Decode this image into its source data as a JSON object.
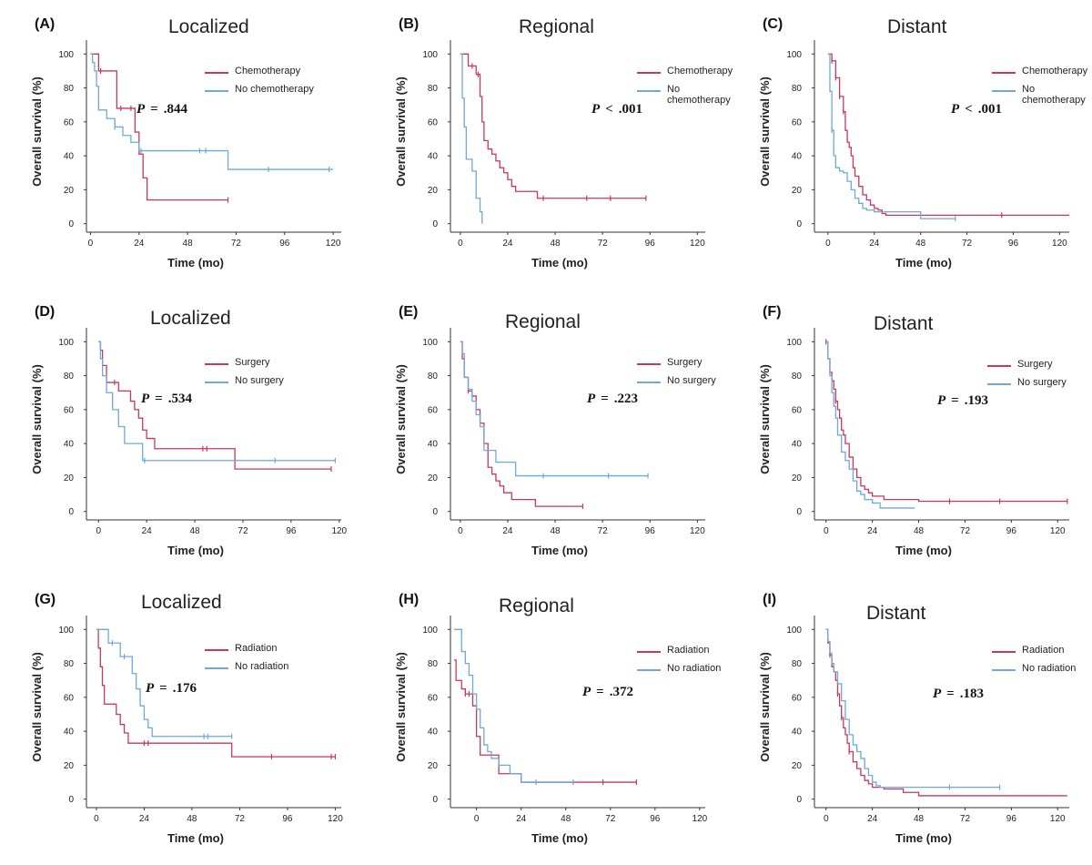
{
  "colors": {
    "treated": "#c8385a",
    "untreated": "#6ea8dc",
    "axis": "#333333"
  },
  "chart_data": [
    {
      "panel": "(A)",
      "title": "Localized",
      "type": "line",
      "xlabel": "Time (mo)",
      "ylabel": "Overall survival (%)",
      "xticks": [
        "0",
        "24",
        "48",
        "72",
        "96",
        "120"
      ],
      "yticks": [
        "0",
        "20",
        "40",
        "60",
        "80",
        "100"
      ],
      "xlim": [
        -2,
        124
      ],
      "ylim": [
        -5,
        105
      ],
      "legend": [
        "Chemotherapy",
        "No chemotherapy"
      ],
      "p_label": "P",
      "p_op": "=",
      "p_value": ".844",
      "series": [
        {
          "name": "Chemotherapy",
          "x": [
            0,
            2,
            4,
            10,
            13,
            20,
            22,
            24,
            26,
            28,
            68
          ],
          "y": [
            100,
            100,
            90,
            90,
            68,
            68,
            54,
            41,
            27,
            14,
            14
          ],
          "censor_x": [
            5,
            15,
            20,
            68
          ],
          "censor_y": [
            90,
            68,
            68,
            14
          ]
        },
        {
          "name": "No chemotherapy",
          "x": [
            0,
            1,
            2,
            3,
            4,
            8,
            12,
            16,
            20,
            24,
            48,
            55,
            68,
            120
          ],
          "y": [
            100,
            95,
            90,
            81,
            67,
            62,
            57,
            52,
            48,
            43,
            43,
            43,
            32,
            32
          ],
          "censor_x": [
            12,
            25,
            54,
            57,
            88,
            118
          ],
          "censor_y": [
            57,
            43,
            43,
            43,
            32,
            32
          ]
        }
      ]
    },
    {
      "panel": "(B)",
      "title": "Regional",
      "type": "line",
      "xlabel": "Time (mo)",
      "ylabel": "Overall survival (%)",
      "xticks": [
        "0",
        "24",
        "48",
        "72",
        "96",
        "120"
      ],
      "yticks": [
        "0",
        "20",
        "40",
        "60",
        "80",
        "100"
      ],
      "xlim": [
        -5,
        124
      ],
      "ylim": [
        -5,
        105
      ],
      "legend": [
        "Chemotherapy",
        "No chemotherapy"
      ],
      "p_label": "P",
      "p_op": "<",
      "p_value": ".001",
      "series": [
        {
          "name": "Chemotherapy",
          "x": [
            0,
            4,
            8,
            10,
            11,
            12,
            14,
            16,
            18,
            20,
            22,
            24,
            26,
            28,
            30,
            35,
            39,
            40,
            94
          ],
          "y": [
            100,
            93,
            88,
            75,
            60,
            49,
            44,
            41,
            37,
            33,
            30,
            26,
            22,
            19,
            19,
            19,
            15,
            15,
            15
          ],
          "censor_x": [
            6,
            9,
            42,
            64,
            76,
            94
          ],
          "censor_y": [
            93,
            88,
            15,
            15,
            15,
            15
          ]
        },
        {
          "name": "No chemotherapy",
          "x": [
            0,
            1,
            2,
            3,
            4,
            6,
            8,
            10,
            11
          ],
          "y": [
            100,
            74,
            57,
            38,
            38,
            31,
            15,
            7,
            0
          ],
          "censor_x": [],
          "censor_y": []
        }
      ]
    },
    {
      "panel": "(C)",
      "title": "Distant",
      "type": "line",
      "xlabel": "Time (mo)",
      "ylabel": "Overall survival (%)",
      "xticks": [
        "0",
        "24",
        "48",
        "72",
        "96",
        "120"
      ],
      "yticks": [
        "0",
        "20",
        "40",
        "60",
        "80",
        "100"
      ],
      "xlim": [
        -7,
        125
      ],
      "ylim": [
        -5,
        105
      ],
      "legend": [
        "Chemotherapy",
        "No chemotherapy"
      ],
      "p_label": "P",
      "p_op": "<",
      "p_value": ".001",
      "series": [
        {
          "name": "Chemotherapy",
          "x": [
            0,
            2,
            4,
            6,
            8,
            9,
            10,
            11,
            12,
            13,
            14,
            16,
            18,
            20,
            22,
            24,
            26,
            28,
            30,
            48,
            125
          ],
          "y": [
            100,
            96,
            86,
            75,
            66,
            55,
            48,
            45,
            40,
            33,
            28,
            22,
            17,
            14,
            11,
            9,
            8,
            6,
            5,
            5,
            5
          ],
          "censor_x": [
            2,
            4,
            6,
            8,
            90
          ],
          "censor_y": [
            96,
            86,
            75,
            66,
            5
          ]
        },
        {
          "name": "No chemotherapy",
          "x": [
            0,
            1,
            2,
            3,
            4,
            6,
            8,
            10,
            12,
            14,
            16,
            18,
            20,
            24,
            28,
            36,
            40,
            48,
            66
          ],
          "y": [
            100,
            78,
            55,
            40,
            33,
            31,
            30,
            25,
            20,
            15,
            12,
            9,
            8,
            7,
            7,
            7,
            7,
            3,
            3
          ],
          "censor_x": [
            2,
            66
          ],
          "censor_y": [
            55,
            3
          ]
        }
      ]
    },
    {
      "panel": "(D)",
      "title": "Localized",
      "type": "line",
      "xlabel": "Time (mo)",
      "ylabel": "Overall survival (%)",
      "xticks": [
        "0",
        "24",
        "48",
        "72",
        "96",
        "120"
      ],
      "yticks": [
        "0",
        "20",
        "40",
        "60",
        "80",
        "100"
      ],
      "xlim": [
        -6,
        121
      ],
      "ylim": [
        -5,
        105
      ],
      "legend": [
        "Surgery",
        "No surgery"
      ],
      "p_label": "P",
      "p_op": "=",
      "p_value": ".534",
      "series": [
        {
          "name": "Surgery",
          "x": [
            0,
            1,
            2,
            4,
            10,
            12,
            16,
            18,
            20,
            22,
            24,
            28,
            68,
            116
          ],
          "y": [
            100,
            95,
            86,
            76,
            71,
            71,
            65,
            60,
            55,
            48,
            43,
            37,
            25,
            25
          ],
          "censor_x": [
            8,
            52,
            54,
            116
          ],
          "censor_y": [
            76,
            37,
            37,
            25
          ]
        },
        {
          "name": "No surgery",
          "x": [
            0,
            1,
            2,
            4,
            7,
            10,
            13,
            22,
            24,
            68,
            118
          ],
          "y": [
            100,
            90,
            80,
            70,
            60,
            50,
            40,
            30,
            30,
            30,
            30
          ],
          "censor_x": [
            23,
            88,
            118
          ],
          "censor_y": [
            30,
            30,
            30
          ]
        }
      ]
    },
    {
      "panel": "(E)",
      "title": "Regional",
      "type": "line",
      "xlabel": "Time (mo)",
      "ylabel": "Overall survival (%)",
      "xticks": [
        "0",
        "24",
        "48",
        "72",
        "96",
        "120"
      ],
      "yticks": [
        "0",
        "20",
        "40",
        "60",
        "80",
        "100"
      ],
      "xlim": [
        -5,
        124
      ],
      "ylim": [
        -5,
        105
      ],
      "legend": [
        "Surgery",
        "No surgery"
      ],
      "p_label": "P",
      "p_op": "=",
      "p_value": ".223",
      "series": [
        {
          "name": "Surgery",
          "x": [
            0,
            1,
            2,
            4,
            6,
            8,
            10,
            12,
            14,
            16,
            18,
            20,
            22,
            26,
            34,
            38,
            62
          ],
          "y": [
            100,
            90,
            79,
            71,
            68,
            60,
            52,
            40,
            26,
            22,
            18,
            15,
            11,
            7,
            7,
            3,
            3
          ],
          "censor_x": [
            4,
            62
          ],
          "censor_y": [
            71,
            3
          ]
        },
        {
          "name": "No surgery",
          "x": [
            0,
            1,
            2,
            4,
            6,
            8,
            10,
            12,
            14,
            18,
            22,
            28,
            95
          ],
          "y": [
            100,
            93,
            79,
            72,
            65,
            57,
            50,
            36,
            36,
            29,
            29,
            21,
            21
          ],
          "censor_x": [
            42,
            75,
            95
          ],
          "censor_y": [
            21,
            21,
            21
          ]
        }
      ]
    },
    {
      "panel": "(F)",
      "title": "Distant",
      "type": "line",
      "xlabel": "Time (mo)",
      "ylabel": "Overall survival (%)",
      "xticks": [
        "0",
        "24",
        "48",
        "72",
        "96",
        "120"
      ],
      "yticks": [
        "0",
        "20",
        "40",
        "60",
        "80",
        "100"
      ],
      "xlim": [
        -6,
        126
      ],
      "ylim": [
        -5,
        105
      ],
      "legend": [
        "Surgery",
        "No surgery"
      ],
      "p_label": "P",
      "p_op": "=",
      "p_value": ".193",
      "series": [
        {
          "name": "Surgery",
          "x": [
            0,
            1,
            2,
            3,
            4,
            5,
            6,
            7,
            8,
            9,
            10,
            12,
            14,
            16,
            18,
            20,
            22,
            24,
            30,
            48,
            64,
            125
          ],
          "y": [
            100,
            90,
            82,
            77,
            72,
            65,
            60,
            55,
            48,
            45,
            40,
            32,
            25,
            20,
            15,
            13,
            11,
            9,
            7,
            6,
            6,
            6
          ],
          "censor_x": [
            0,
            5,
            64,
            90,
            125
          ],
          "censor_y": [
            100,
            65,
            6,
            6,
            6
          ]
        },
        {
          "name": "No surgery",
          "x": [
            0,
            1,
            2,
            3,
            4,
            5,
            6,
            8,
            10,
            12,
            14,
            16,
            18,
            20,
            24,
            28,
            46
          ],
          "y": [
            100,
            90,
            80,
            70,
            62,
            55,
            45,
            35,
            30,
            25,
            18,
            12,
            10,
            7,
            5,
            2,
            2
          ],
          "censor_x": [],
          "censor_y": []
        }
      ]
    },
    {
      "panel": "(G)",
      "title": "Localized",
      "type": "line",
      "xlabel": "Time (mo)",
      "ylabel": "Overall survival (%)",
      "xticks": [
        "0",
        "24",
        "48",
        "72",
        "96",
        "120"
      ],
      "yticks": [
        "0",
        "20",
        "40",
        "60",
        "80",
        "100"
      ],
      "xlim": [
        -5,
        123
      ],
      "ylim": [
        -5,
        105
      ],
      "legend": [
        "Radiation",
        "No radiation"
      ],
      "p_label": "P",
      "p_op": "=",
      "p_value": ".176",
      "series": [
        {
          "name": "Radiation",
          "x": [
            0,
            1,
            2,
            3,
            4,
            10,
            12,
            14,
            16,
            24,
            68,
            120
          ],
          "y": [
            100,
            89,
            78,
            67,
            56,
            50,
            44,
            39,
            33,
            33,
            25,
            25
          ],
          "censor_x": [
            24,
            26,
            88,
            118,
            120
          ],
          "censor_y": [
            33,
            33,
            25,
            25,
            25
          ]
        },
        {
          "name": "No radiation",
          "x": [
            0,
            6,
            12,
            18,
            20,
            22,
            24,
            26,
            28,
            68
          ],
          "y": [
            100,
            92,
            84,
            74,
            65,
            55,
            47,
            42,
            37,
            37
          ],
          "censor_x": [
            8,
            14,
            54,
            56,
            68
          ],
          "censor_y": [
            92,
            84,
            37,
            37,
            37
          ]
        }
      ]
    },
    {
      "panel": "(H)",
      "title": "Regional",
      "type": "line",
      "xlabel": "Time (mo)",
      "ylabel": "Overall survival (%)",
      "xticks": [
        "0",
        "24",
        "48",
        "72",
        "96",
        "120"
      ],
      "yticks": [
        "0",
        "20",
        "40",
        "60",
        "80",
        "100"
      ],
      "xlim": [
        -14,
        123
      ],
      "ylim": [
        -5,
        105
      ],
      "legend": [
        "Radiation",
        "No radiation"
      ],
      "p_label": "P",
      "p_op": "=",
      "p_value": ".372",
      "series": [
        {
          "name": "Radiation",
          "x": [
            -12,
            -11,
            -10,
            -8,
            -6,
            -4,
            -2,
            0,
            2,
            4,
            12,
            18,
            24,
            30,
            50,
            68,
            86
          ],
          "y": [
            82,
            70,
            70,
            65,
            62,
            62,
            55,
            37,
            26,
            26,
            15,
            15,
            10,
            10,
            10,
            10,
            10
          ],
          "censor_x": [
            -6,
            -4,
            68,
            86
          ],
          "censor_y": [
            62,
            62,
            10,
            10
          ]
        },
        {
          "name": "No radiation",
          "x": [
            -12,
            -10,
            -8,
            -6,
            -4,
            -2,
            0,
            2,
            4,
            6,
            8,
            12,
            18,
            24,
            30,
            52
          ],
          "y": [
            100,
            100,
            87,
            80,
            73,
            62,
            53,
            42,
            32,
            28,
            24,
            20,
            15,
            10,
            10,
            10
          ],
          "censor_x": [
            32,
            52
          ],
          "censor_y": [
            10,
            10
          ]
        }
      ]
    },
    {
      "panel": "(I)",
      "title": "Distant",
      "type": "line",
      "xlabel": "Time (mo)",
      "ylabel": "Overall survival (%)",
      "xticks": [
        "0",
        "24",
        "48",
        "72",
        "96",
        "120"
      ],
      "yticks": [
        "0",
        "20",
        "40",
        "60",
        "80",
        "100"
      ],
      "xlim": [
        -6,
        126
      ],
      "ylim": [
        -5,
        105
      ],
      "legend": [
        "Radiation",
        "No radiation"
      ],
      "p_label": "P",
      "p_op": "=",
      "p_value": ".183",
      "series": [
        {
          "name": "Radiation",
          "x": [
            0,
            1,
            2,
            3,
            4,
            5,
            6,
            7,
            8,
            9,
            10,
            11,
            12,
            14,
            16,
            18,
            20,
            22,
            24,
            30,
            40,
            48,
            125
          ],
          "y": [
            100,
            92,
            85,
            78,
            75,
            70,
            62,
            55,
            48,
            42,
            38,
            33,
            28,
            22,
            18,
            14,
            11,
            9,
            7,
            6,
            4,
            2,
            2
          ],
          "censor_x": [
            2,
            6,
            8,
            12
          ],
          "censor_y": [
            85,
            62,
            48,
            28
          ]
        },
        {
          "name": "No radiation",
          "x": [
            0,
            1,
            2,
            3,
            4,
            6,
            8,
            10,
            12,
            14,
            16,
            18,
            20,
            22,
            24,
            26,
            28,
            90
          ],
          "y": [
            100,
            93,
            86,
            80,
            75,
            68,
            58,
            47,
            38,
            32,
            28,
            24,
            18,
            14,
            10,
            8,
            7,
            7
          ],
          "censor_x": [
            64,
            90
          ],
          "censor_y": [
            7,
            7
          ]
        }
      ]
    }
  ]
}
